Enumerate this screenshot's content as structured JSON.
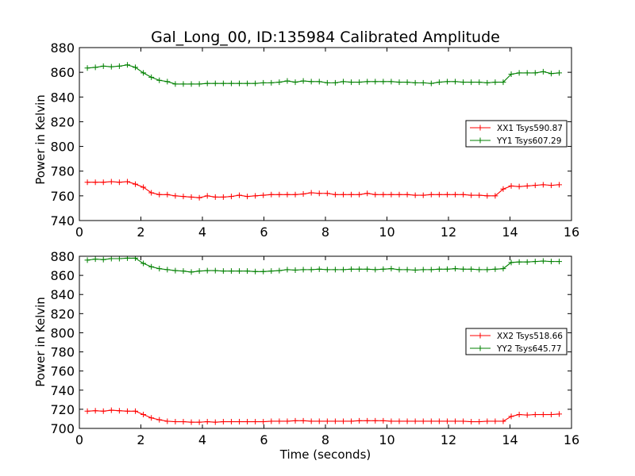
{
  "chart_data": {
    "title": "Gal_Long_00, ID:135984 Calibrated Amplitude",
    "xlabel": "Time (seconds)",
    "x": [
      0.26,
      0.52,
      0.78,
      1.04,
      1.3,
      1.56,
      1.82,
      2.08,
      2.34,
      2.6,
      2.86,
      3.12,
      3.38,
      3.64,
      3.9,
      4.16,
      4.42,
      4.68,
      4.94,
      5.2,
      5.46,
      5.72,
      5.98,
      6.24,
      6.5,
      6.76,
      7.02,
      7.28,
      7.54,
      7.8,
      8.06,
      8.32,
      8.58,
      8.84,
      9.1,
      9.36,
      9.62,
      9.88,
      10.14,
      10.4,
      10.66,
      10.92,
      11.18,
      11.44,
      11.7,
      11.96,
      12.22,
      12.48,
      12.74,
      13.0,
      13.26,
      13.52,
      13.78,
      14.04,
      14.3,
      14.56,
      14.82,
      15.08,
      15.34,
      15.6
    ],
    "panels": [
      {
        "type": "line",
        "ylabel": "Power in Kelvin",
        "xlim": [
          0,
          16
        ],
        "ylim": [
          740,
          880
        ],
        "xticks": [
          "0",
          "2",
          "4",
          "6",
          "8",
          "10",
          "12",
          "14",
          "16"
        ],
        "yticks": [
          "740",
          "760",
          "780",
          "800",
          "820",
          "840",
          "860",
          "880"
        ],
        "legend_position": "right",
        "series": [
          {
            "name": "XX1 Tsys590.87",
            "color": "#ff0000",
            "values": [
              771,
              771,
              771,
              771.5,
              771,
              771.5,
              769.5,
              767,
              762.5,
              761,
              761,
              760,
              759.5,
              759,
              758.5,
              760,
              759,
              759,
              759.5,
              760.5,
              759.5,
              760,
              760.5,
              761,
              761,
              761,
              761,
              761.5,
              762.5,
              762,
              762,
              761,
              761,
              761,
              761,
              762,
              761,
              761,
              761,
              761,
              761,
              760.5,
              760.5,
              761,
              761,
              761,
              761,
              761,
              760.5,
              760.5,
              760,
              760,
              765.5,
              768,
              767.5,
              768,
              768.5,
              769,
              768.5,
              769
            ]
          },
          {
            "name": "YY1 Tsys607.29",
            "color": "#008000",
            "values": [
              863.5,
              864,
              865,
              864.5,
              865,
              866,
              864,
              859.5,
              856,
              853.5,
              852.5,
              850.5,
              850.5,
              850.5,
              850.5,
              851,
              851,
              851,
              851,
              851,
              851,
              851,
              851.5,
              851.5,
              852,
              853,
              852,
              853,
              852.5,
              852.5,
              851.5,
              851.5,
              852.5,
              852,
              852,
              852.5,
              852.5,
              852.5,
              852.5,
              852,
              852,
              851.5,
              851.5,
              851,
              852,
              852.5,
              852.5,
              852,
              852,
              852,
              851.5,
              852,
              852,
              858.5,
              859.5,
              859.5,
              859.5,
              860.5,
              859,
              859.5
            ]
          }
        ]
      },
      {
        "type": "line",
        "ylabel": "Power in Kelvin",
        "xlim": [
          0,
          16
        ],
        "ylim": [
          700,
          880
        ],
        "xticks": [
          "0",
          "2",
          "4",
          "6",
          "8",
          "10",
          "12",
          "14",
          "16"
        ],
        "yticks": [
          "700",
          "720",
          "740",
          "760",
          "780",
          "800",
          "820",
          "840",
          "860",
          "880"
        ],
        "legend_position": "right",
        "series": [
          {
            "name": "XX2 Tsys518.66",
            "color": "#ff0000",
            "values": [
              718,
              718.5,
              718,
              719,
              718.5,
              718,
              718,
              714.5,
              711,
              709,
              707.5,
              707,
              707,
              706.5,
              706.5,
              707,
              706.5,
              707,
              707,
              707,
              707,
              707,
              707,
              707.5,
              707.5,
              707.5,
              708,
              708,
              707.5,
              707.5,
              707.5,
              707.5,
              707.5,
              707.5,
              708,
              708,
              708,
              708,
              707.5,
              707.5,
              707.5,
              707.5,
              707.5,
              707.5,
              707.5,
              707.5,
              707.5,
              707.5,
              707,
              707,
              707.5,
              707.5,
              707.5,
              712.5,
              714.5,
              714,
              714.5,
              714.5,
              714.5,
              715
            ]
          },
          {
            "name": "YY2 Tsys645.77",
            "color": "#008000",
            "values": [
              876,
              877,
              876.5,
              877.5,
              877.5,
              878,
              878,
              872.5,
              869,
              867,
              866,
              865,
              864.5,
              863.5,
              864.5,
              865,
              865,
              864.5,
              864.5,
              864.5,
              864.5,
              864,
              864,
              864.5,
              865,
              866,
              865.5,
              866,
              866,
              866.5,
              866,
              866,
              866,
              866.5,
              866.5,
              866.5,
              866,
              866.5,
              867,
              866,
              866,
              865.5,
              866,
              866,
              866.5,
              866.5,
              867,
              866.5,
              866.5,
              866,
              866,
              866.5,
              867,
              873.5,
              874,
              874,
              874.5,
              875,
              874.5,
              874.5
            ]
          }
        ]
      }
    ]
  }
}
